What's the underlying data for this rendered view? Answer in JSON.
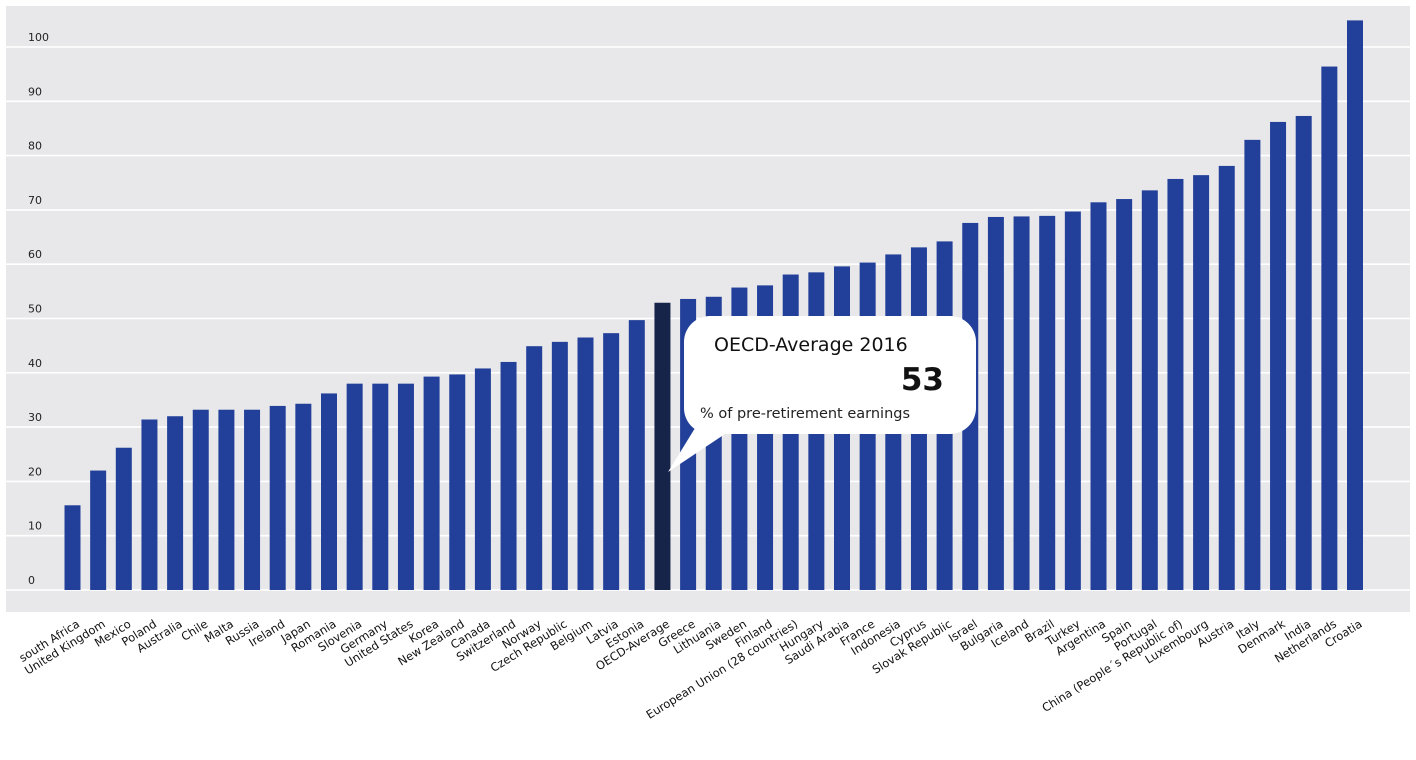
{
  "chart_data": {
    "type": "bar",
    "categories": [
      "south Africa",
      "United Kingdom",
      "Mexico",
      "Poland",
      "Australia",
      "Chile",
      "Malta",
      "Russia",
      "Ireland",
      "Japan",
      "Romania",
      "Slovenia",
      "Germany",
      "United States",
      "Korea",
      "New Zealand",
      "Canada",
      "Switzerland",
      "Norway",
      "Czech Republic",
      "Belgium",
      "Latvia",
      "Estonia",
      "OECD-Average",
      "Greece",
      "Lithuania",
      "Sweden",
      "Finland",
      "European Union (28 countries)",
      "Hungary",
      "Saudi Arabia",
      "France",
      "Indonesia",
      "Cyprus",
      "Slovak Republic",
      "Israel",
      "Bulgaria",
      "Iceland",
      "Brazil",
      "Turkey",
      "Argentina",
      "Spain",
      "Portugal",
      "China (People´s Republic of)",
      "Luxembourg",
      "Austria",
      "Italy",
      "Denmark",
      "India",
      "Netherlands",
      "Croatia"
    ],
    "values": [
      15.6,
      22,
      26.2,
      31.4,
      32,
      33.2,
      33.2,
      33.2,
      33.9,
      34.3,
      36.2,
      38,
      38,
      38,
      39.3,
      39.7,
      40.8,
      42,
      44.9,
      45.7,
      46.5,
      47.3,
      49.7,
      52.9,
      53.6,
      54,
      55.7,
      56.1,
      58.1,
      58.5,
      59.6,
      60.3,
      61.8,
      63.1,
      64.2,
      67.6,
      68.7,
      68.8,
      68.9,
      69.7,
      71.4,
      72,
      73.6,
      75.7,
      76.4,
      78.1,
      82.9,
      86.2,
      87.3,
      96.4,
      104.9
    ],
    "highlight_category": "OECD-Average",
    "ylim": [
      0,
      105
    ],
    "yticks": [
      0,
      10,
      20,
      30,
      40,
      50,
      60,
      70,
      80,
      90,
      100
    ],
    "title": "",
    "xlabel": "",
    "ylabel": "",
    "grid": true,
    "colors": {
      "bar": "#22409a",
      "highlight": "#16244a",
      "plot_bg": "#e8e8ea",
      "grid": "#ffffff"
    }
  },
  "annotation": {
    "title": "OECD-Average 2016",
    "value": "53",
    "caption": "% of pre-retirement earnings"
  }
}
